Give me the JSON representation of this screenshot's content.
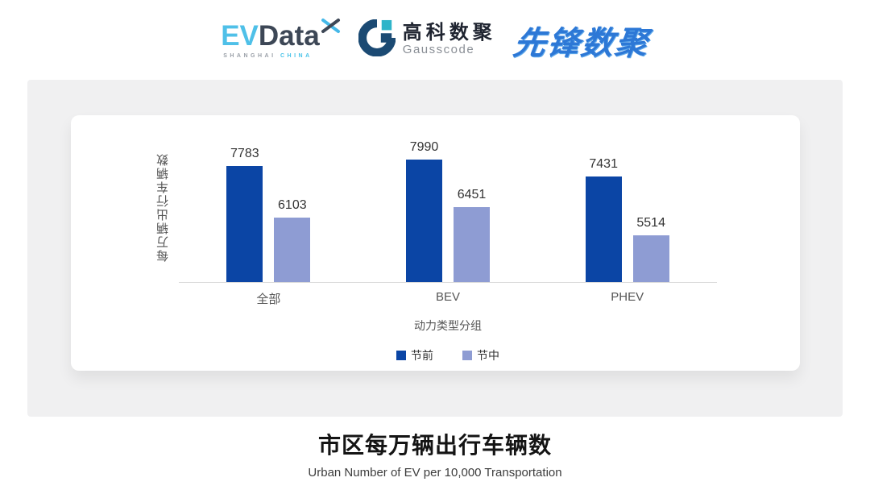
{
  "header": {
    "evdata": {
      "ev": "EV",
      "data": "Data",
      "sub_left": "SHANGHAI",
      "sub_right": "CHINA"
    },
    "gausscode": {
      "cn": "高科数聚",
      "en": "Gausscode"
    },
    "pioneer": {
      "text": "先锋数聚"
    }
  },
  "chart_data": {
    "type": "bar",
    "categories": [
      "全部",
      "BEV",
      "PHEV"
    ],
    "series": [
      {
        "name": "节前",
        "color": "#0b45a5",
        "values": [
          7783,
          7990,
          7431
        ]
      },
      {
        "name": "节中",
        "color": "#8e9cd3",
        "values": [
          6103,
          6451,
          5514
        ]
      }
    ],
    "xlabel": "动力类型分组",
    "ylabel": "每万辆出行车辆数",
    "ylim": [
      4000,
      8200
    ],
    "grid": false,
    "legend_position": "bottom",
    "value_labels": true
  },
  "footer": {
    "title": "市区每万辆出行车辆数",
    "subtitle": "Urban Number of EV per 10,000 Transportation"
  },
  "colors": {
    "panel_bg": "#f0f0f1",
    "card_bg": "#ffffff",
    "axis_line": "#dcdcdc",
    "bar_pre_holiday": "#0b45a5",
    "bar_mid_holiday": "#8e9cd3",
    "evdata_blue": "#4fc0e8",
    "evdata_slate": "#3d4756",
    "gauss_navy": "#1b4a73",
    "gauss_teal": "#2fb4c9",
    "pioneer_blue": "#2d78d6"
  }
}
